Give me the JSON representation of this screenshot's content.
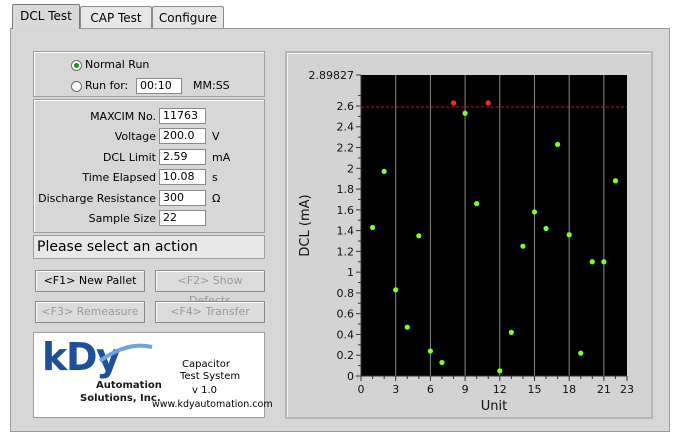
{
  "tabs": [
    {
      "label": "DCL Test"
    },
    {
      "label": "CAP Test"
    },
    {
      "label": "Configure"
    }
  ],
  "run_mode": {
    "normal_label": "Normal Run",
    "runfor_label": "Run for:",
    "runfor_value": "00:10",
    "runfor_unit": "MM:SS",
    "selected": "normal"
  },
  "fields": [
    {
      "label": "MAXCIM No.",
      "value": "11763",
      "unit": ""
    },
    {
      "label": "Voltage",
      "value": "200.0",
      "unit": "V"
    },
    {
      "label": "DCL Limit",
      "value": "2.59",
      "unit": "mA"
    },
    {
      "label": "Time Elapsed",
      "value": "10.08",
      "unit": "s"
    },
    {
      "label": "Discharge Resistance",
      "value": "300",
      "unit": "Ω"
    },
    {
      "label": "Sample Size",
      "value": "22",
      "unit": ""
    }
  ],
  "status_message": "Please select an action",
  "buttons": {
    "new_pallet": "<F1> New Pallet",
    "show_defects": "<F2> Show Defects",
    "remeasure": "<F3> Remeasure",
    "transfer": "<F4> Transfer"
  },
  "logo": {
    "brand_k": "k",
    "brand_d": "D",
    "brand_y": "y",
    "sub1": "Automation",
    "sub2": "Solutions, Inc.",
    "product1": "Capacitor",
    "product2": "Test System",
    "version": "v 1.0",
    "website": "www.kdyautomation.com"
  },
  "colors": {
    "plot_bg": "#000000",
    "point_ok": "#7dff2a",
    "point_fail": "#ff2a2a",
    "limit_line": "#c01818",
    "grid": "#8a8a8a",
    "logo_blue": "#1d4f9c"
  },
  "chart_data": {
    "type": "scatter",
    "xlabel": "Unit",
    "ylabel": "DCL (mA)",
    "xlim": [
      0,
      23
    ],
    "ylim": [
      0,
      2.89827
    ],
    "x_ticks": [
      0,
      3,
      6,
      9,
      12,
      15,
      18,
      21,
      23
    ],
    "y_ticks": [
      0,
      0.2,
      0.4,
      0.6,
      0.8,
      1,
      1.2,
      1.4,
      1.6,
      1.8,
      2,
      2.2,
      2.4,
      2.6
    ],
    "y_top_label": "2.89827",
    "limit": 2.59,
    "grid": "vertical",
    "points": [
      {
        "x": 1,
        "y": 1.43
      },
      {
        "x": 2,
        "y": 1.97
      },
      {
        "x": 3,
        "y": 0.83
      },
      {
        "x": 4,
        "y": 0.47
      },
      {
        "x": 5,
        "y": 1.35
      },
      {
        "x": 6,
        "y": 0.24
      },
      {
        "x": 7,
        "y": 0.13
      },
      {
        "x": 8,
        "y": 2.63
      },
      {
        "x": 9,
        "y": 2.53
      },
      {
        "x": 10,
        "y": 1.66
      },
      {
        "x": 11,
        "y": 2.63
      },
      {
        "x": 12,
        "y": 0.05
      },
      {
        "x": 13,
        "y": 0.42
      },
      {
        "x": 14,
        "y": 1.25
      },
      {
        "x": 15,
        "y": 1.58
      },
      {
        "x": 16,
        "y": 1.42
      },
      {
        "x": 17,
        "y": 2.23
      },
      {
        "x": 18,
        "y": 1.36
      },
      {
        "x": 19,
        "y": 0.22
      },
      {
        "x": 20,
        "y": 1.1
      },
      {
        "x": 21,
        "y": 1.1
      },
      {
        "x": 22,
        "y": 1.88
      }
    ]
  }
}
